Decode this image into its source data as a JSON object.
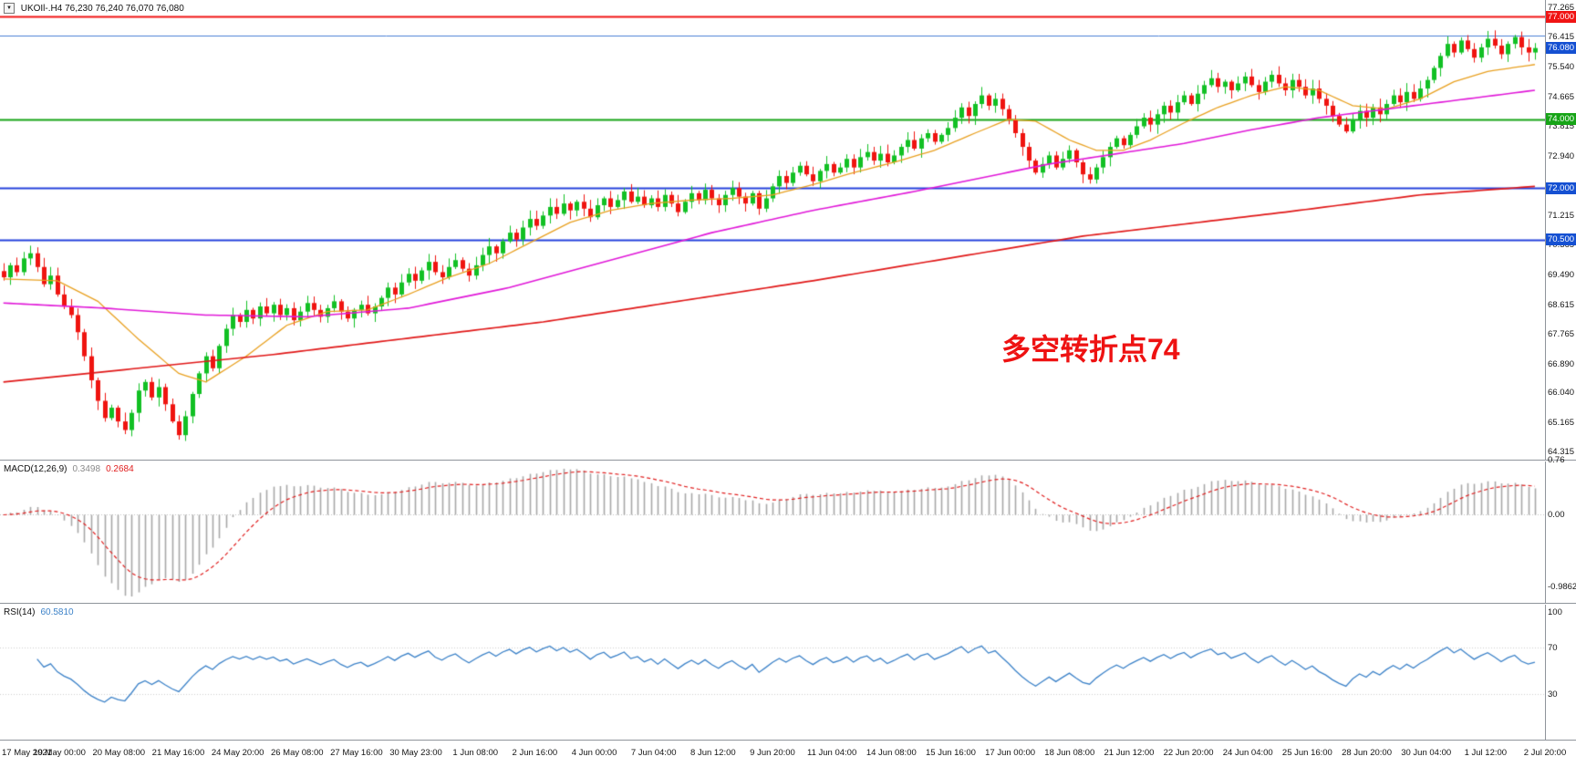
{
  "header": {
    "symbol_title": "UKOIl-.H4 76,230 76,240 76,070 76,080"
  },
  "annotation": {
    "text": "多空转折点74",
    "color": "#ee1212"
  },
  "price_axis": {
    "tick_values": [
      77.265,
      76.415,
      75.54,
      74.665,
      73.815,
      72.94,
      72.065,
      71.215,
      70.365,
      69.49,
      68.615,
      67.765,
      66.89,
      66.04,
      65.165,
      64.315
    ],
    "badges": [
      {
        "label": "77.000",
        "price": 77.0,
        "bg": "#f01414"
      },
      {
        "label": "76.080",
        "price": 76.08,
        "bg": "#1550d2"
      },
      {
        "label": "74.000",
        "price": 74.0,
        "bg": "#16a416"
      },
      {
        "label": "72.000",
        "price": 72.0,
        "bg": "#1550d2"
      },
      {
        "label": "70.500",
        "price": 70.5,
        "bg": "#1550d2"
      }
    ]
  },
  "macd_panel": {
    "title": "MACD(12,26,9)",
    "value_main": "0.3498",
    "value_signal": "0.2684",
    "axis_values": [
      0.76,
      0.0,
      -0.9862
    ],
    "axis_labels": [
      "0.76",
      "0.00",
      "-0.9862"
    ]
  },
  "rsi_panel": {
    "title": "RSI(14)",
    "value": "60.5810",
    "axis_values": [
      100,
      70,
      30
    ],
    "axis_labels": [
      "100",
      "70",
      "30"
    ],
    "levels": [
      70,
      30
    ]
  },
  "time_axis": {
    "labels": [
      "17 May 2021",
      "19 May 00:00",
      "20 May 08:00",
      "21 May 16:00",
      "24 May 20:00",
      "26 May 08:00",
      "27 May 16:00",
      "30 May 23:00",
      "1 Jun 08:00",
      "2 Jun 16:00",
      "4 Jun 00:00",
      "7 Jun 04:00",
      "8 Jun 12:00",
      "9 Jun 20:00",
      "11 Jun 04:00",
      "14 Jun 08:00",
      "15 Jun 16:00",
      "17 Jun 00:00",
      "18 Jun 08:00",
      "21 Jun 12:00",
      "22 Jun 20:00",
      "24 Jun 04:00",
      "25 Jun 16:00",
      "28 Jun 20:00",
      "30 Jun 04:00",
      "1 Jul 12:00",
      "2 Jul 20:00"
    ]
  },
  "chart_data": {
    "type": "candlestick",
    "symbol": "UKOIl",
    "timeframe": "H4",
    "current_bar": {
      "open": 76.23,
      "high": 76.24,
      "low": 76.07,
      "close": 76.08
    },
    "y_range": [
      64.06,
      77.48
    ],
    "wick": 0.22,
    "colors": {
      "up": "#12c024",
      "down": "#ef1410",
      "macd_hist": "#a8a8a8",
      "macd_signal": "#e02020",
      "rsi_line": "#3c82c8"
    },
    "closes": [
      69.4,
      69.75,
      69.55,
      69.95,
      70.1,
      69.7,
      69.2,
      69.45,
      68.9,
      68.55,
      68.3,
      67.8,
      67.1,
      66.4,
      65.8,
      65.3,
      65.6,
      65.2,
      64.95,
      65.45,
      66.1,
      66.35,
      65.9,
      66.2,
      65.7,
      65.2,
      64.8,
      65.35,
      66.0,
      66.6,
      67.1,
      66.75,
      67.4,
      67.9,
      68.3,
      68.1,
      68.45,
      68.2,
      68.55,
      68.35,
      68.6,
      68.3,
      68.5,
      68.15,
      68.4,
      68.65,
      68.45,
      68.25,
      68.5,
      68.7,
      68.4,
      68.2,
      68.45,
      68.6,
      68.35,
      68.55,
      68.8,
      69.1,
      68.9,
      69.25,
      69.5,
      69.3,
      69.6,
      69.85,
      69.55,
      69.4,
      69.7,
      69.9,
      69.65,
      69.45,
      69.75,
      70.05,
      70.3,
      70.1,
      70.45,
      70.7,
      70.5,
      70.85,
      71.1,
      70.9,
      71.2,
      71.45,
      71.25,
      71.55,
      71.35,
      71.6,
      71.4,
      71.15,
      71.5,
      71.7,
      71.45,
      71.65,
      71.9,
      71.6,
      71.75,
      71.5,
      71.7,
      71.45,
      71.8,
      71.55,
      71.3,
      71.6,
      71.85,
      71.65,
      71.95,
      71.7,
      71.5,
      71.8,
      72.0,
      71.75,
      71.55,
      71.85,
      71.4,
      71.7,
      72.05,
      72.35,
      72.15,
      72.45,
      72.65,
      72.4,
      72.2,
      72.5,
      72.7,
      72.45,
      72.6,
      72.85,
      72.6,
      72.9,
      73.05,
      72.8,
      73.0,
      72.75,
      72.95,
      73.2,
      73.4,
      73.15,
      73.45,
      73.6,
      73.35,
      73.55,
      73.75,
      74.05,
      74.35,
      74.1,
      74.45,
      74.7,
      74.4,
      74.6,
      74.3,
      74.0,
      73.6,
      73.2,
      72.8,
      72.45,
      72.7,
      72.95,
      72.6,
      72.85,
      73.1,
      72.75,
      72.4,
      72.25,
      72.6,
      72.9,
      73.2,
      73.45,
      73.25,
      73.55,
      73.8,
      74.05,
      73.85,
      74.15,
      74.4,
      74.2,
      74.5,
      74.7,
      74.45,
      74.75,
      75.0,
      75.2,
      74.95,
      75.1,
      74.85,
      75.05,
      75.25,
      75.0,
      74.8,
      75.1,
      75.3,
      75.05,
      74.85,
      75.15,
      74.95,
      74.7,
      74.9,
      74.6,
      74.4,
      74.1,
      73.85,
      73.65,
      74.0,
      74.25,
      74.05,
      74.35,
      74.15,
      74.45,
      74.7,
      74.5,
      74.8,
      74.6,
      74.9,
      75.15,
      75.5,
      75.85,
      76.2,
      75.95,
      76.3,
      76.05,
      75.8,
      76.1,
      76.35,
      76.15,
      75.9,
      76.2,
      76.4,
      76.1,
      75.95,
      76.08
    ],
    "levels": [
      {
        "price": 77.0,
        "color": "#f01414",
        "width": 2
      },
      {
        "price": 76.45,
        "color": "#4a7fd4",
        "width": 1
      },
      {
        "price": 74.0,
        "color": "#16a416",
        "width": 2
      },
      {
        "price": 72.0,
        "color": "#2440dc",
        "width": 2
      },
      {
        "price": 70.5,
        "color": "#2440dc",
        "width": 2
      }
    ],
    "moving_averages": [
      {
        "name": "ma-fast",
        "color": "#e8a020",
        "width": 1.3,
        "anchors": [
          [
            0,
            69.35
          ],
          [
            8,
            69.3
          ],
          [
            14,
            68.7
          ],
          [
            20,
            67.6
          ],
          [
            26,
            66.6
          ],
          [
            30,
            66.35
          ],
          [
            36,
            67.1
          ],
          [
            42,
            68.0
          ],
          [
            48,
            68.4
          ],
          [
            54,
            68.45
          ],
          [
            60,
            68.9
          ],
          [
            66,
            69.4
          ],
          [
            72,
            69.8
          ],
          [
            78,
            70.4
          ],
          [
            84,
            71.0
          ],
          [
            90,
            71.35
          ],
          [
            96,
            71.55
          ],
          [
            102,
            71.65
          ],
          [
            108,
            71.7
          ],
          [
            114,
            71.8
          ],
          [
            120,
            72.1
          ],
          [
            126,
            72.45
          ],
          [
            132,
            72.75
          ],
          [
            138,
            73.1
          ],
          [
            144,
            73.6
          ],
          [
            149,
            74.0
          ],
          [
            153,
            73.95
          ],
          [
            158,
            73.4
          ],
          [
            162,
            73.1
          ],
          [
            166,
            73.1
          ],
          [
            170,
            73.4
          ],
          [
            175,
            73.9
          ],
          [
            180,
            74.35
          ],
          [
            185,
            74.7
          ],
          [
            190,
            74.95
          ],
          [
            195,
            74.85
          ],
          [
            200,
            74.4
          ],
          [
            205,
            74.3
          ],
          [
            210,
            74.6
          ],
          [
            215,
            75.1
          ],
          [
            220,
            75.4
          ],
          [
            227,
            75.6
          ]
        ]
      },
      {
        "name": "ma-medium",
        "color": "#e018d8",
        "width": 1.6,
        "anchors": [
          [
            0,
            68.65
          ],
          [
            15,
            68.5
          ],
          [
            30,
            68.3
          ],
          [
            45,
            68.25
          ],
          [
            60,
            68.5
          ],
          [
            75,
            69.1
          ],
          [
            90,
            69.9
          ],
          [
            105,
            70.7
          ],
          [
            120,
            71.35
          ],
          [
            135,
            71.9
          ],
          [
            145,
            72.3
          ],
          [
            155,
            72.7
          ],
          [
            165,
            73.0
          ],
          [
            175,
            73.3
          ],
          [
            185,
            73.7
          ],
          [
            195,
            74.05
          ],
          [
            205,
            74.3
          ],
          [
            215,
            74.55
          ],
          [
            227,
            74.85
          ]
        ]
      },
      {
        "name": "ma-slow",
        "color": "#e01818",
        "width": 1.7,
        "anchors": [
          [
            0,
            66.35
          ],
          [
            40,
            67.15
          ],
          [
            80,
            68.1
          ],
          [
            120,
            69.3
          ],
          [
            160,
            70.6
          ],
          [
            190,
            71.3
          ],
          [
            210,
            71.8
          ],
          [
            227,
            72.05
          ]
        ]
      }
    ],
    "indicators": {
      "macd": {
        "fast": 12,
        "slow": 26,
        "signal": 9,
        "current_main": 0.3498,
        "current_signal": 0.2684
      },
      "rsi": {
        "period": 14,
        "current": 60.581
      }
    }
  }
}
